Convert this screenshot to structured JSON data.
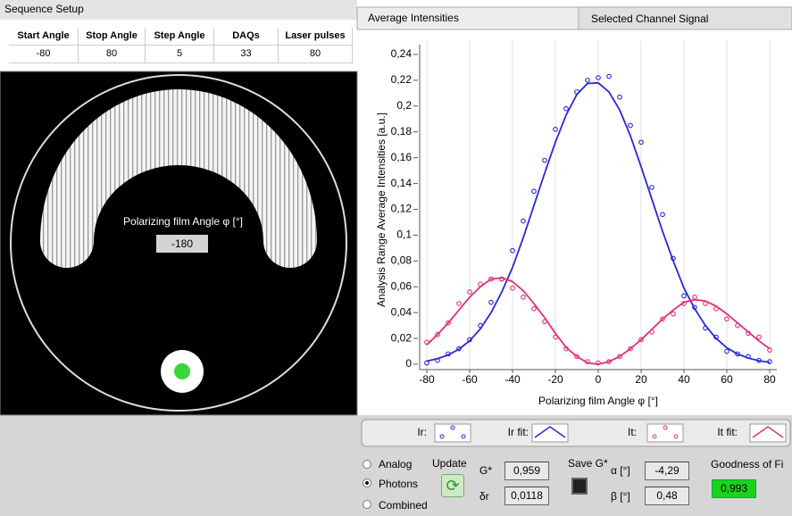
{
  "sequence_setup": {
    "title": "Sequence Setup",
    "columns": [
      "Start Angle",
      "Stop Angle",
      "Step Angle",
      "DAQs",
      "Laser pulses"
    ],
    "values": [
      -80,
      80,
      5,
      33,
      80
    ]
  },
  "rotator": {
    "label": "Polarizing film Angle φ [°]",
    "value": "-180"
  },
  "tabs": [
    "Average Intensities",
    "Selected Channel Signal"
  ],
  "chart_data": {
    "type": "scatter",
    "xlabel": "Polarizing film Angle φ [°]",
    "ylabel": "Analysis Range Average Intensities [a.u.]",
    "x": [
      -80,
      -75,
      -70,
      -65,
      -60,
      -55,
      -50,
      -45,
      -40,
      -35,
      -30,
      -25,
      -20,
      -15,
      -10,
      -5,
      0,
      5,
      10,
      15,
      20,
      25,
      30,
      35,
      40,
      45,
      50,
      55,
      60,
      65,
      70,
      75,
      80
    ],
    "series": [
      {
        "name": "Ir:",
        "color": "#2828d8",
        "kind": "markers",
        "values": [
          0.001,
          0.003,
          0.008,
          0.012,
          0.019,
          0.03,
          0.048,
          0.066,
          0.088,
          0.111,
          0.134,
          0.158,
          0.182,
          0.198,
          0.211,
          0.22,
          0.222,
          0.223,
          0.207,
          0.185,
          0.172,
          0.137,
          0.116,
          0.082,
          0.053,
          0.044,
          0.028,
          0.021,
          0.01,
          0.008,
          0.006,
          0.003,
          0.002
        ]
      },
      {
        "name": "Ir fit:",
        "color": "#2828d8",
        "kind": "line",
        "values": [
          0.0024,
          0.0043,
          0.0072,
          0.0116,
          0.0182,
          0.0274,
          0.04,
          0.056,
          0.075,
          0.098,
          0.123,
          0.148,
          0.172,
          0.193,
          0.209,
          0.2175,
          0.218,
          0.211,
          0.197,
          0.177,
          0.153,
          0.128,
          0.103,
          0.08,
          0.059,
          0.043,
          0.03,
          0.02,
          0.0128,
          0.0079,
          0.0048,
          0.0027,
          0.0015
        ]
      },
      {
        "name": "It:",
        "color": "#e0307a",
        "kind": "markers",
        "values": [
          0.017,
          0.023,
          0.032,
          0.047,
          0.056,
          0.062,
          0.066,
          0.066,
          0.059,
          0.052,
          0.043,
          0.033,
          0.021,
          0.012,
          0.006,
          0.002,
          0.001,
          0.002,
          0.006,
          0.012,
          0.019,
          0.025,
          0.035,
          0.039,
          0.047,
          0.052,
          0.047,
          0.043,
          0.035,
          0.03,
          0.024,
          0.021,
          0.011
        ]
      },
      {
        "name": "It fit:",
        "color": "#e0307a",
        "kind": "line",
        "values": [
          0.015,
          0.023,
          0.032,
          0.042,
          0.052,
          0.06,
          0.066,
          0.067,
          0.064,
          0.057,
          0.047,
          0.036,
          0.024,
          0.013,
          0.006,
          0.001,
          0.0,
          0.002,
          0.006,
          0.012,
          0.019,
          0.027,
          0.035,
          0.042,
          0.048,
          0.05,
          0.049,
          0.045,
          0.039,
          0.032,
          0.025,
          0.018,
          0.012
        ]
      }
    ],
    "xlim": [
      -80,
      80
    ],
    "ylim": [
      0,
      0.24
    ],
    "xticks": [
      -80,
      -60,
      -40,
      -20,
      0,
      20,
      40,
      60,
      80
    ],
    "yticks": [
      0,
      {
        "value": 0.02,
        "label": "0,02"
      },
      {
        "value": 0.04,
        "label": "0,04"
      },
      {
        "value": 0.06,
        "label": "0,06"
      },
      {
        "value": 0.08,
        "label": "0,08"
      },
      {
        "value": 0.1,
        "label": "0,1"
      },
      {
        "value": 0.12,
        "label": "0,12"
      },
      {
        "value": 0.14,
        "label": "0,14"
      },
      {
        "value": 0.16,
        "label": "0,16"
      },
      {
        "value": 0.18,
        "label": "0,18"
      },
      {
        "value": 0.2,
        "label": "0,2"
      },
      {
        "value": 0.22,
        "label": "0,22"
      },
      {
        "value": 0.24,
        "label": "0,24"
      }
    ],
    "grid": "x"
  },
  "controls": {
    "modes": [
      "Analog",
      "Photons",
      "Combined"
    ],
    "update": "Update",
    "g_star_label": "G*",
    "g_star": "0,959",
    "delta_r_label": "δr",
    "delta_r": "0,0118",
    "save": "Save G*",
    "alpha_label": "α [°]",
    "alpha": "-4,29",
    "beta_label": "β [°]",
    "beta": "0,48",
    "goodness_label": "Goodness of Fi",
    "goodness": "0,993"
  }
}
